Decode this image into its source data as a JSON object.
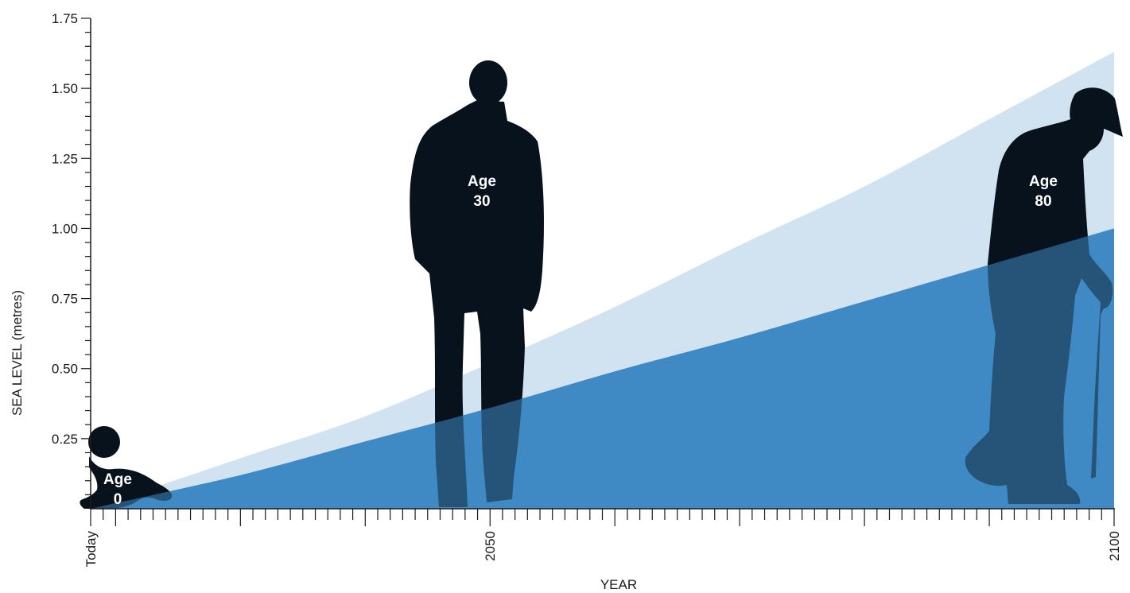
{
  "chart_data": {
    "type": "area",
    "xlabel": "YEAR",
    "ylabel": "SEA LEVEL (metres)",
    "xlim": [
      2018,
      2100
    ],
    "ylim": [
      0,
      1.75
    ],
    "x_tick_labels": [
      {
        "x": 2018,
        "label": "Today"
      },
      {
        "x": 2050,
        "label": "2050"
      },
      {
        "x": 2100,
        "label": "2100"
      }
    ],
    "y_ticks": [
      0.25,
      0.5,
      0.75,
      1.0,
      1.25,
      1.5,
      1.75
    ],
    "y_tick_labels": [
      "0.25",
      "0.50",
      "0.75",
      "1.00",
      "1.25",
      "1.50",
      "1.75"
    ],
    "series": [
      {
        "x": [
          2018,
          2030,
          2040,
          2050,
          2060,
          2070,
          2080,
          2090,
          2100
        ],
        "values": [
          0.0,
          0.18,
          0.33,
          0.52,
          0.72,
          0.94,
          1.15,
          1.39,
          1.63
        ],
        "color": "#d1e3f1"
      },
      {
        "x": [
          2018,
          2030,
          2040,
          2050,
          2060,
          2070,
          2080,
          2090,
          2100
        ],
        "values": [
          0.0,
          0.12,
          0.24,
          0.36,
          0.49,
          0.61,
          0.74,
          0.87,
          1.0
        ],
        "color": "#3f8ac4"
      }
    ],
    "annotations": [
      {
        "label_line1": "Age",
        "label_line2": "0"
      },
      {
        "label_line1": "Age",
        "label_line2": "30"
      },
      {
        "label_line1": "Age",
        "label_line2": "80"
      }
    ]
  },
  "colors": {
    "upper_band": "#d1e3f1",
    "lower_band": "#3f8ac4",
    "silhouette": "#08121c",
    "axis": "#1a1a1a"
  }
}
